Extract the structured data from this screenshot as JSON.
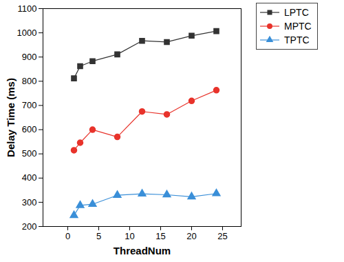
{
  "chart_data": {
    "type": "line",
    "x_label": "ThreadNum",
    "y_label": "Delay Time (ms)",
    "x": [
      1,
      2,
      4,
      8,
      12,
      16,
      20,
      24
    ],
    "series": [
      {
        "name": "LPTC",
        "color": "#333333",
        "marker": "square",
        "values": [
          812,
          862,
          883,
          911,
          967,
          962,
          988,
          1007
        ]
      },
      {
        "name": "MPTC",
        "color": "#e8332b",
        "marker": "circle",
        "values": [
          515,
          546,
          600,
          570,
          675,
          663,
          719,
          763
        ]
      },
      {
        "name": "TPTC",
        "color": "#3a8fd8",
        "marker": "triangle",
        "values": [
          246,
          287,
          292,
          329,
          335,
          331,
          323,
          336
        ]
      }
    ],
    "xlim": [
      -4,
      28
    ],
    "xticks": [
      0,
      5,
      10,
      15,
      20,
      25
    ],
    "ylim": [
      200,
      1100
    ],
    "yticks": [
      200,
      300,
      400,
      500,
      600,
      700,
      800,
      900,
      1000,
      1100
    ],
    "grid": false,
    "legend": "top right"
  }
}
